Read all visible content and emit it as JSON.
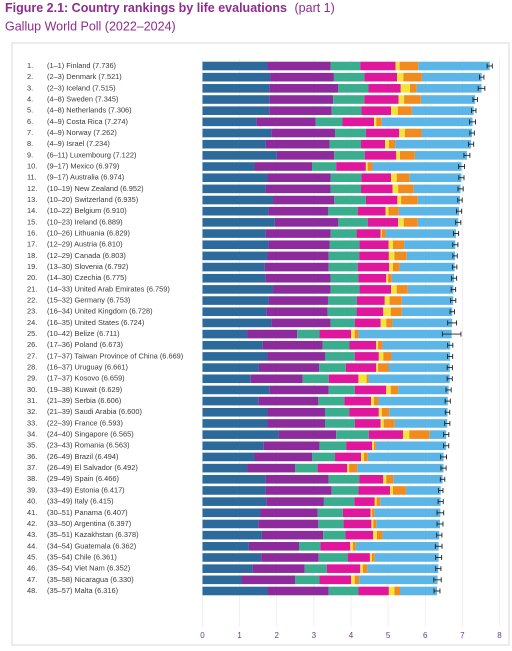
{
  "chart_data": {
    "type": "stacked-bar-horizontal",
    "title": "Figure 2.1: Country rankings by life evaluations",
    "title_suffix": "(part 1)",
    "subtitle": "Gallup World Poll (2022–2024)",
    "ranks": [
      "1.",
      "2.",
      "3.",
      "4.",
      "5.",
      "6.",
      "7.",
      "8.",
      "9.",
      "10.",
      "11.",
      "12.",
      "13.",
      "14.",
      "15.",
      "16.",
      "17.",
      "18.",
      "19.",
      "20.",
      "21.",
      "22.",
      "23.",
      "24.",
      "25.",
      "26.",
      "27.",
      "28.",
      "29.",
      "30.",
      "31.",
      "32.",
      "33.",
      "34.",
      "35.",
      "36.",
      "37.",
      "38.",
      "39.",
      "40.",
      "41.",
      "42.",
      "43.",
      "44.",
      "45.",
      "46.",
      "47.",
      "48."
    ],
    "categories": [
      "(1–1) Finland (7.736)",
      "(2–3) Denmark (7.521)",
      "(2–3) Iceland (7.515)",
      "(4–8) Sweden (7.345)",
      "(4–8) Netherlands (7.306)",
      "(4–9) Costa Rica (7.274)",
      "(4–9) Norway (7.262)",
      "(4–9) Israel (7.234)",
      "(6–11) Luxembourg (7.122)",
      "(9–17) Mexico (6.979)",
      "(9–17) Australia (6.974)",
      "(10–19) New Zealand (6.952)",
      "(10–20) Switzerland (6.935)",
      "(10–22) Belgium (6.910)",
      "(10–23) Ireland (6.889)",
      "(10–26) Lithuania (6.829)",
      "(12–29) Austria (6.810)",
      "(12–29) Canada (6.803)",
      "(13–30) Slovenia (6.792)",
      "(14–30) Czechia (6.775)",
      "(14–33) United Arab Emirates (6.759)",
      "(15–32) Germany (6.753)",
      "(16–34) United Kingdom (6.728)",
      "(16–35) United States (6.724)",
      "(10–42) Belize (6.711)",
      "(17–36) Poland (6.673)",
      "(17–37) Taiwan Province of China (6.669)",
      "(16–37) Uruguay (6.661)",
      "(17–37) Kosovo (6.659)",
      "(19–38) Kuwait (6.629)",
      "(21–39) Serbia (6.606)",
      "(21–39) Saudi Arabia (6.600)",
      "(22–39) France (6.593)",
      "(24–40) Singapore (6.565)",
      "(23–43) Romania (6.563)",
      "(26–49) Brazil (6.494)",
      "(26–49) El Salvador (6.492)",
      "(29–49) Spain (6.466)",
      "(33–49) Estonia (6.417)",
      "(33–49) Italy (6.415)",
      "(30–51) Panama (6.407)",
      "(33–50) Argentina (6.397)",
      "(35–51) Kazakhstan (6.378)",
      "(34–54) Guatemala (6.362)",
      "(35–54) Chile (6.361)",
      "(35–54) Viet Nam (6.352)",
      "(35–58) Nicaragua (6.330)",
      "(35–57) Malta (6.316)"
    ],
    "series": [
      {
        "color": "#2b6a9b",
        "values": [
          1.75,
          1.82,
          1.8,
          1.8,
          1.8,
          1.45,
          1.85,
          1.7,
          2.0,
          1.4,
          1.75,
          1.7,
          1.9,
          1.78,
          1.95,
          1.7,
          1.78,
          1.75,
          1.68,
          1.7,
          1.9,
          1.78,
          1.72,
          1.85,
          1.2,
          1.62,
          1.75,
          1.52,
          1.3,
          1.8,
          1.5,
          1.75,
          1.75,
          2.05,
          1.65,
          1.4,
          1.2,
          1.7,
          1.7,
          1.72,
          1.55,
          1.5,
          1.6,
          1.25,
          1.58,
          1.35,
          1.05,
          1.75
        ]
      },
      {
        "color": "#8d2a9c",
        "values": [
          1.7,
          1.72,
          1.85,
          1.72,
          1.68,
          1.6,
          1.72,
          1.72,
          1.55,
          1.55,
          1.7,
          1.75,
          1.65,
          1.6,
          1.7,
          1.75,
          1.65,
          1.65,
          1.72,
          1.75,
          1.55,
          1.6,
          1.65,
          1.6,
          1.35,
          1.62,
          1.55,
          1.62,
          1.4,
          1.6,
          1.62,
          1.55,
          1.55,
          1.55,
          1.5,
          1.55,
          1.3,
          1.7,
          1.78,
          1.55,
          1.55,
          1.62,
          1.65,
          1.35,
          1.55,
          1.4,
          1.45,
          1.65
        ]
      },
      {
        "color": "#3aad8e",
        "values": [
          0.8,
          0.82,
          0.82,
          0.84,
          0.8,
          0.72,
          0.83,
          0.85,
          0.82,
          0.65,
          0.83,
          0.82,
          0.85,
          0.8,
          0.8,
          0.7,
          0.8,
          0.82,
          0.78,
          0.75,
          0.78,
          0.78,
          0.78,
          0.65,
          0.6,
          0.72,
          0.8,
          0.72,
          0.7,
          0.7,
          0.7,
          0.65,
          0.8,
          0.88,
          0.72,
          0.62,
          0.6,
          0.82,
          0.72,
          0.82,
          0.68,
          0.68,
          0.6,
          0.58,
          0.78,
          0.6,
          0.65,
          0.8
        ]
      },
      {
        "color": "#e0169c",
        "values": [
          0.95,
          0.88,
          0.87,
          0.92,
          0.8,
          0.85,
          0.9,
          0.65,
          0.85,
          0.8,
          0.8,
          0.85,
          0.85,
          0.75,
          0.82,
          0.65,
          0.78,
          0.8,
          0.85,
          0.75,
          0.85,
          0.75,
          0.72,
          0.7,
          0.85,
          0.72,
          0.65,
          0.82,
          0.8,
          0.85,
          0.72,
          0.8,
          0.7,
          0.92,
          0.7,
          0.7,
          0.8,
          0.65,
          0.85,
          0.55,
          0.75,
          0.75,
          0.75,
          0.8,
          0.6,
          0.9,
          0.85,
          0.82
        ]
      },
      {
        "color": "#f2e53a",
        "values": [
          0.11,
          0.17,
          0.25,
          0.15,
          0.18,
          0.06,
          0.15,
          0.1,
          0.1,
          0.05,
          0.15,
          0.15,
          0.1,
          0.08,
          0.15,
          0.03,
          0.12,
          0.15,
          0.1,
          0.05,
          0.15,
          0.13,
          0.2,
          0.15,
          0.1,
          0.05,
          0.12,
          0.05,
          0.22,
          0.12,
          0.08,
          0.08,
          0.08,
          0.17,
          0.05,
          0.08,
          0.05,
          0.08,
          0.08,
          0.05,
          0.03,
          0.05,
          0.1,
          0.07,
          0.05,
          0.07,
          0.1,
          0.15
        ]
      },
      {
        "color": "#f28b1e",
        "values": [
          0.5,
          0.5,
          0.18,
          0.45,
          0.38,
          0.15,
          0.45,
          0.17,
          0.4,
          0.13,
          0.35,
          0.42,
          0.45,
          0.28,
          0.38,
          0.1,
          0.3,
          0.33,
          0.18,
          0.1,
          0.3,
          0.33,
          0.3,
          0.17,
          0.1,
          0.12,
          0.22,
          0.28,
          0.05,
          0.2,
          0.12,
          0.2,
          0.3,
          0.55,
          0.05,
          0.1,
          0.22,
          0.2,
          0.35,
          0.1,
          0.07,
          0.08,
          0.15,
          0.08,
          0.08,
          0.12,
          0.12,
          0.15
        ]
      },
      {
        "color": "#5bb5e6",
        "values": [
          1.926,
          1.611,
          1.745,
          1.465,
          1.666,
          2.444,
          1.362,
          2.044,
          1.402,
          2.399,
          1.394,
          1.262,
          1.135,
          1.62,
          1.089,
          1.899,
          1.38,
          1.303,
          1.482,
          1.675,
          1.229,
          1.383,
          1.358,
          1.604,
          2.511,
          1.823,
          1.579,
          1.651,
          2.189,
          1.359,
          1.866,
          1.57,
          1.413,
          0.445,
          1.893,
          2.044,
          2.322,
          1.316,
          0.937,
          1.625,
          1.777,
          1.717,
          1.528,
          2.232,
          1.721,
          1.912,
          2.11,
          0.996
        ]
      }
    ],
    "errors": [
      0.07,
      0.06,
      0.09,
      0.06,
      0.06,
      0.08,
      0.06,
      0.07,
      0.08,
      0.08,
      0.07,
      0.07,
      0.06,
      0.07,
      0.07,
      0.07,
      0.07,
      0.06,
      0.06,
      0.07,
      0.06,
      0.07,
      0.06,
      0.12,
      0.25,
      0.07,
      0.07,
      0.07,
      0.07,
      0.07,
      0.07,
      0.06,
      0.07,
      0.07,
      0.07,
      0.08,
      0.07,
      0.06,
      0.06,
      0.07,
      0.09,
      0.08,
      0.07,
      0.09,
      0.08,
      0.07,
      0.1,
      0.08
    ],
    "xlim": [
      0,
      8
    ],
    "xticks": [
      0,
      1,
      2,
      3,
      4,
      5,
      6,
      7,
      8
    ],
    "grid": true
  }
}
